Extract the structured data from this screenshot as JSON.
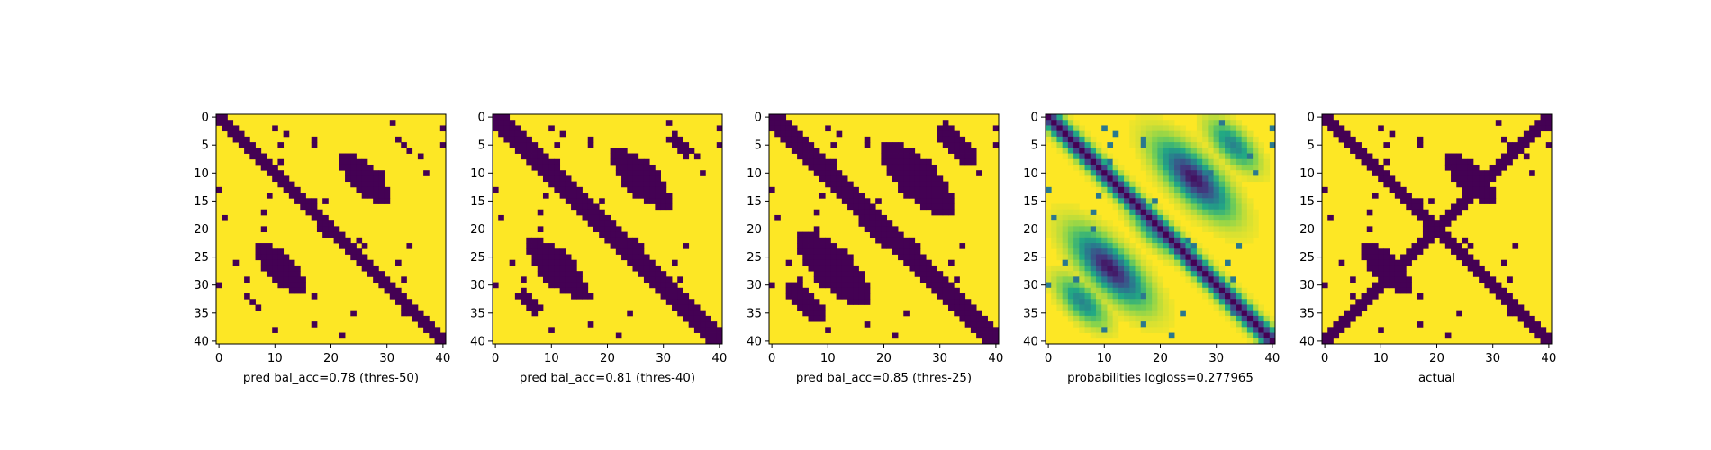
{
  "chart_data": [
    {
      "type": "heatmap",
      "xlabel": "pred bal_acc=0.78 (thres-50)",
      "binary": true,
      "threshold": 0.5,
      "xticks": [
        0,
        10,
        20,
        30,
        40
      ],
      "yticks": [
        0,
        5,
        10,
        15,
        20,
        25,
        30,
        35,
        40
      ],
      "xlim": [
        0,
        40
      ],
      "ylim": [
        40,
        0
      ]
    },
    {
      "type": "heatmap",
      "xlabel": "pred bal_acc=0.81 (thres-40)",
      "binary": true,
      "threshold": 0.4,
      "xticks": [
        0,
        10,
        20,
        30,
        40
      ],
      "yticks": [
        0,
        5,
        10,
        15,
        20,
        25,
        30,
        35,
        40
      ],
      "xlim": [
        0,
        40
      ],
      "ylim": [
        40,
        0
      ]
    },
    {
      "type": "heatmap",
      "xlabel": "pred bal_acc=0.85 (thres-25)",
      "binary": true,
      "threshold": 0.25,
      "xticks": [
        0,
        10,
        20,
        30,
        40
      ],
      "yticks": [
        0,
        5,
        10,
        15,
        20,
        25,
        30,
        35,
        40
      ],
      "xlim": [
        0,
        40
      ],
      "ylim": [
        40,
        0
      ]
    },
    {
      "type": "heatmap",
      "xlabel": "probabilities logloss=0.277965",
      "binary": false,
      "xticks": [
        0,
        10,
        20,
        30,
        40
      ],
      "yticks": [
        0,
        5,
        10,
        15,
        20,
        25,
        30,
        35,
        40
      ],
      "xlim": [
        0,
        40
      ],
      "ylim": [
        40,
        0
      ]
    },
    {
      "type": "heatmap",
      "xlabel": "actual",
      "binary": true,
      "threshold": 0.5,
      "xticks": [
        0,
        10,
        20,
        30,
        40
      ],
      "yticks": [
        0,
        5,
        10,
        15,
        20,
        25,
        30,
        35,
        40
      ],
      "xlim": [
        0,
        40
      ],
      "ylim": [
        40,
        0
      ]
    }
  ],
  "colors": {
    "viridis": [
      "#440154",
      "#414487",
      "#2a788e",
      "#22a884",
      "#7ad151",
      "#fde725"
    ],
    "low": "#440154",
    "high": "#fde725"
  }
}
